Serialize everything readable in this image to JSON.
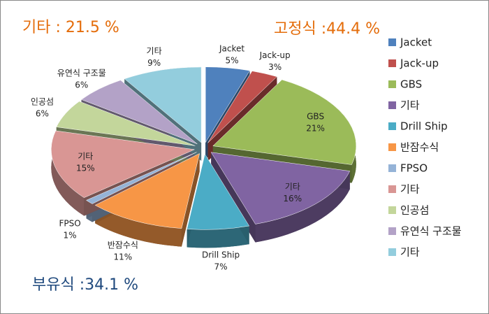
{
  "chart_data": {
    "type": "pie",
    "categories": [
      "Jacket",
      "Jack-up",
      "GBS",
      "기타",
      "Drill Ship",
      "반잠수식",
      "FPSO",
      "기타",
      "인공섬",
      "유연식 구조물",
      "기타"
    ],
    "values": [
      5,
      3,
      21,
      16,
      7,
      11,
      1,
      15,
      6,
      6,
      9
    ],
    "value_labels": [
      "5%",
      "3%",
      "21%",
      "16%",
      "7%",
      "11%",
      "1%",
      "15%",
      "6%",
      "6%",
      "9%"
    ],
    "colors": [
      "#4f81bd",
      "#c0504d",
      "#9bbb59",
      "#8064a2",
      "#4bacc6",
      "#f79646",
      "#95b3d7",
      "#d99694",
      "#c3d69b",
      "#b3a2c7",
      "#93cddd"
    ],
    "annotations": [
      "기타 : 21.5 %",
      "고정식 :44.4 %",
      "부유식 :34.1 %"
    ],
    "legend": "right"
  }
}
